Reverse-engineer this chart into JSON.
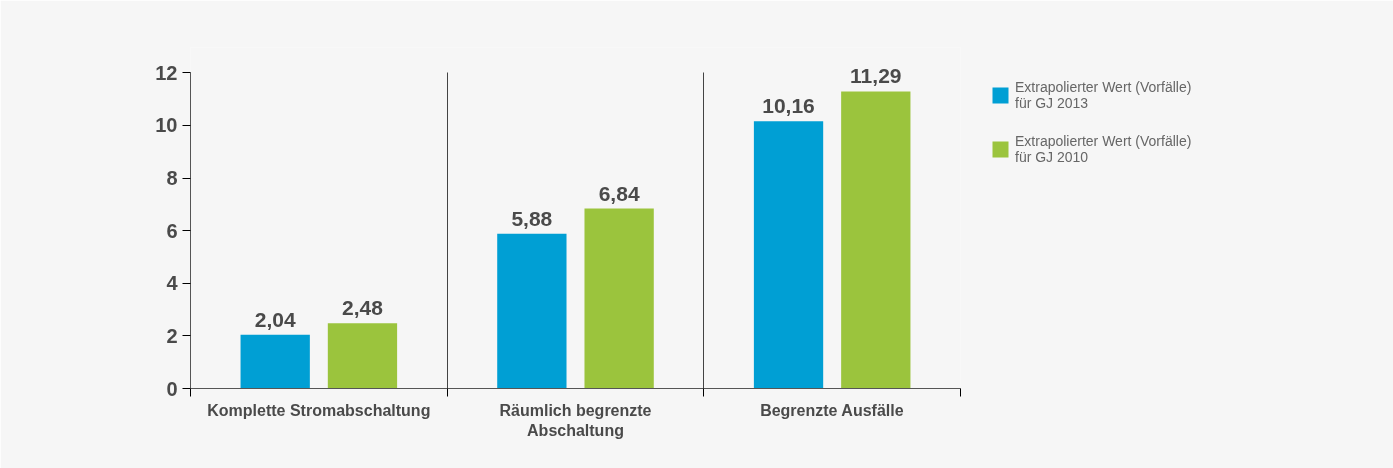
{
  "chart_data": {
    "type": "bar",
    "categories": [
      "Komplette Stromabschaltung",
      "Räumlich begrenzte Abschaltung",
      "Begrenzte Ausfälle"
    ],
    "series": [
      {
        "name": "Extrapolierter Wert (Vorfälle) für GJ 2013",
        "color": "#009fd4",
        "values": [
          2.04,
          5.88,
          10.16
        ],
        "value_labels": [
          "2,04",
          "5,88",
          "10,16"
        ]
      },
      {
        "name": "Extrapolierter Wert (Vorfälle) für GJ 2010",
        "color": "#9bc43d",
        "values": [
          2.48,
          6.84,
          11.29
        ],
        "value_labels": [
          "2,48",
          "6,84",
          "11,29"
        ]
      }
    ],
    "ylim": [
      0,
      12
    ],
    "yticks": [
      0,
      2,
      4,
      6,
      8,
      10,
      12
    ],
    "grid": "x",
    "legend": "top right"
  }
}
